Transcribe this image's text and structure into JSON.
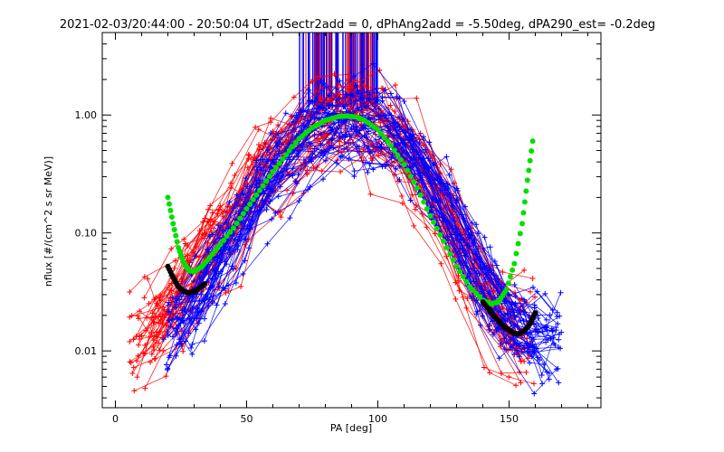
{
  "chart_data": {
    "type": "scatter",
    "title": "2021-02-03/20:44:00 - 20:50:04 UT, dSectr2add = 0, dPhAng2add = -5.50deg, dPA290_est=  -0.2deg",
    "xlabel": "PA [deg]",
    "ylabel": "nflux [#/(cm^2 s sr MeV)]",
    "xlim": [
      -5,
      185
    ],
    "ylim": [
      0.0033,
      5.0
    ],
    "yscale": "log",
    "grid": false,
    "x_ticks": [
      0,
      50,
      100,
      150
    ],
    "x_tick_labels": [
      "0",
      "50",
      "100",
      "150"
    ],
    "y_ticks": [
      0.01,
      0.1,
      1.0
    ],
    "y_tick_labels": [
      "0.01",
      "0.10",
      "1.00"
    ],
    "colors": {
      "red_series": "#ff0000",
      "blue_series": "#0000ff",
      "green_fit": "#00e000",
      "black_fit": "#000000",
      "axes": "#000000"
    },
    "series": [
      {
        "color": "#00e000",
        "marker": "filled-circle",
        "x": [
          20,
          22,
          24,
          26,
          28,
          30,
          33,
          36,
          40,
          45,
          50,
          55,
          60,
          65,
          70,
          75,
          80,
          85,
          88,
          92,
          95,
          100,
          105,
          110,
          115,
          120,
          125,
          130,
          135,
          140,
          143,
          146,
          149,
          152,
          155,
          157,
          159
        ],
        "y": [
          0.2,
          0.12,
          0.075,
          0.056,
          0.048,
          0.047,
          0.052,
          0.062,
          0.08,
          0.11,
          0.16,
          0.23,
          0.33,
          0.46,
          0.63,
          0.78,
          0.9,
          0.97,
          0.98,
          0.96,
          0.9,
          0.75,
          0.55,
          0.38,
          0.24,
          0.14,
          0.085,
          0.052,
          0.035,
          0.027,
          0.025,
          0.026,
          0.033,
          0.055,
          0.12,
          0.28,
          0.6
        ]
      },
      {
        "color": "#000000",
        "marker": "filled-circle",
        "x": [
          20,
          22,
          24,
          26,
          28,
          30,
          32,
          34
        ],
        "y": [
          0.052,
          0.042,
          0.035,
          0.032,
          0.031,
          0.032,
          0.034,
          0.037
        ]
      },
      {
        "color": "#000000",
        "marker": "filled-circle",
        "x": [
          140,
          142,
          144,
          146,
          148,
          150,
          152,
          154,
          156,
          158,
          160
        ],
        "y": [
          0.026,
          0.023,
          0.02,
          0.018,
          0.016,
          0.015,
          0.014,
          0.014,
          0.015,
          0.017,
          0.021
        ]
      }
    ],
    "bands": [
      {
        "name": "red",
        "color": "#ff0000",
        "marker": "plus",
        "x": [
          5,
          12,
          20,
          28,
          36,
          44,
          52,
          60,
          68,
          76,
          84,
          90,
          96,
          104,
          112,
          120,
          128,
          136,
          144,
          152,
          160
        ],
        "center": [
          0.011,
          0.014,
          0.02,
          0.035,
          0.07,
          0.12,
          0.22,
          0.38,
          0.55,
          0.72,
          0.86,
          0.9,
          0.85,
          0.65,
          0.42,
          0.22,
          0.1,
          0.045,
          0.022,
          0.013,
          0.012
        ]
      },
      {
        "name": "blue",
        "color": "#0000ff",
        "marker": "plus",
        "x": [
          18,
          24,
          30,
          38,
          46,
          54,
          62,
          70,
          78,
          86,
          92,
          98,
          106,
          114,
          122,
          130,
          138,
          146,
          154,
          162,
          170
        ],
        "center": [
          0.012,
          0.016,
          0.025,
          0.05,
          0.1,
          0.19,
          0.34,
          0.55,
          0.77,
          0.93,
          0.95,
          0.9,
          0.7,
          0.45,
          0.24,
          0.11,
          0.05,
          0.025,
          0.015,
          0.012,
          0.013
        ]
      }
    ],
    "spikes": {
      "x_range": [
        70,
        100
      ],
      "top_value": 5.0,
      "bottom_value_range": [
        1.1,
        1.25
      ]
    }
  }
}
